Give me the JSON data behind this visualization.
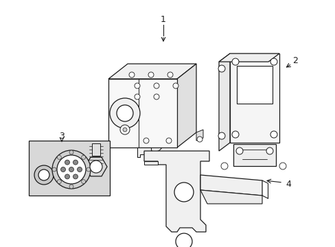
{
  "bg_color": "#ffffff",
  "line_color": "#1a1a1a",
  "fig_width": 4.89,
  "fig_height": 3.6,
  "dpi": 100,
  "label_fontsize": 9
}
